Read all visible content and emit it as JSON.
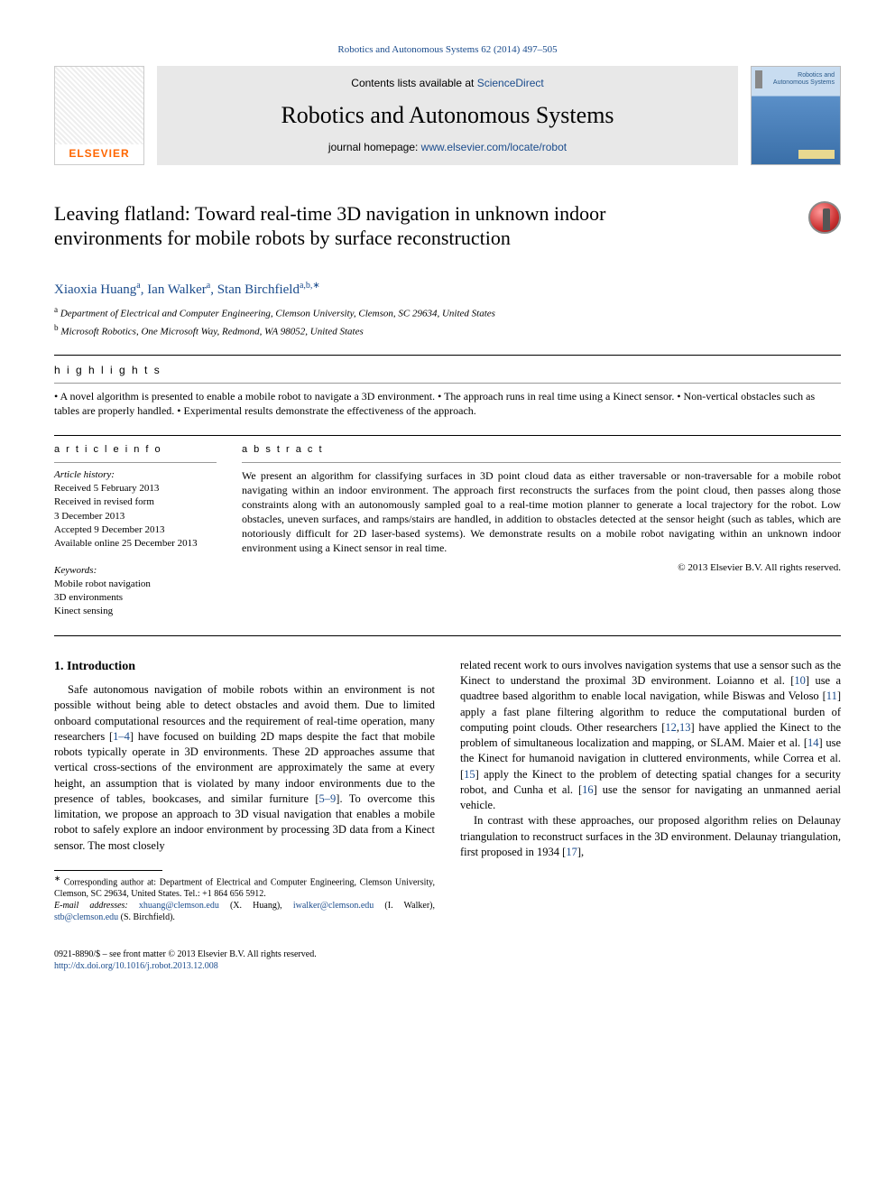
{
  "header": {
    "citation_prefix": "Robotics and Autonomous Systems 62 (2014) 497–505",
    "contents_prefix": "Contents lists available at ",
    "sciencedirect": "ScienceDirect",
    "journal_name": "Robotics and Autonomous Systems",
    "homepage_prefix": "journal homepage: ",
    "homepage_url": "www.elsevier.com/locate/robot",
    "elsevier_label": "ELSEVIER",
    "cover_title_line1": "Robotics and",
    "cover_title_line2": "Autonomous Systems"
  },
  "paper": {
    "title": "Leaving flatland: Toward real-time 3D navigation in unknown indoor environments for mobile robots by surface reconstruction"
  },
  "authors": {
    "a1_name": "Xiaoxia Huang",
    "a1_sup": "a",
    "a2_name": "Ian Walker",
    "a2_sup": "a",
    "a3_name": "Stan Birchfield",
    "a3_sup": "a,b,",
    "corr_mark": "∗"
  },
  "affiliations": {
    "a_sup": "a",
    "a_text": " Department of Electrical and Computer Engineering, Clemson University, Clemson, SC 29634, United States",
    "b_sup": "b",
    "b_text": " Microsoft Robotics, One Microsoft Way, Redmond, WA 98052, United States"
  },
  "highlights": {
    "heading": "h i g h l i g h t s",
    "text": "• A novel algorithm is presented to enable a mobile robot to navigate a 3D environment. • The approach runs in real time using a Kinect sensor. • Non-vertical obstacles such as tables are properly handled. • Experimental results demonstrate the effectiveness of the approach."
  },
  "article_info": {
    "heading": "a r t i c l e   i n f o",
    "hist_label": "Article history:",
    "hist_1": "Received 5 February 2013",
    "hist_2": "Received in revised form",
    "hist_3": "3 December 2013",
    "hist_4": "Accepted 9 December 2013",
    "hist_5": "Available online 25 December 2013",
    "kw_label": "Keywords:",
    "kw_1": "Mobile robot navigation",
    "kw_2": "3D environments",
    "kw_3": "Kinect sensing"
  },
  "abstract": {
    "heading": "a b s t r a c t",
    "text": "We present an algorithm for classifying surfaces in 3D point cloud data as either traversable or non-traversable for a mobile robot navigating within an indoor environment. The approach first reconstructs the surfaces from the point cloud, then passes along those constraints along with an autonomously sampled goal to a real-time motion planner to generate a local trajectory for the robot. Low obstacles, uneven surfaces, and ramps/stairs are handled, in addition to obstacles detected at the sensor height (such as tables, which are notoriously difficult for 2D laser-based systems). We demonstrate results on a mobile robot navigating within an unknown indoor environment using a Kinect sensor in real time.",
    "copyright": "© 2013 Elsevier B.V. All rights reserved."
  },
  "body": {
    "section_num": "1.",
    "section_title": " Introduction",
    "col1_p1": "Safe autonomous navigation of mobile robots within an environment is not possible without being able to detect obstacles and avoid them. Due to limited onboard computational resources and the requirement of real-time operation, many researchers [",
    "ref_1_4": "1–4",
    "col1_p1b": "] have focused on building 2D maps despite the fact that mobile robots typically operate in 3D environments. These 2D approaches assume that vertical cross-sections of the environment are approximately the same at every height, an assumption that is violated by many indoor environments due to the presence of tables, bookcases, and similar furniture [",
    "ref_5_9": "5–9",
    "col1_p1c": "]. To overcome this limitation, we propose an approach to 3D visual navigation that enables a mobile robot to safely explore an indoor environment by processing 3D data from a Kinect sensor. The most closely",
    "col2_p1a": "related recent work to ours involves navigation systems that use a sensor such as the Kinect to understand the proximal 3D environment. Loianno et al. [",
    "ref_10": "10",
    "col2_p1b": "] use a quadtree based algorithm to enable local navigation, while Biswas and Veloso [",
    "ref_11": "11",
    "col2_p1c": "] apply a fast plane filtering algorithm to reduce the computational burden of computing point clouds. Other researchers [",
    "ref_12": "12",
    "ref_13": "13",
    "col2_p1d": "] have applied the Kinect to the problem of simultaneous localization and mapping, or SLAM. Maier et al. [",
    "ref_14": "14",
    "col2_p1e": "] use the Kinect for humanoid navigation in cluttered environments, while Correa et al. [",
    "ref_15": "15",
    "col2_p1f": "] apply the Kinect to the problem of detecting spatial changes for a security robot, and Cunha et al. [",
    "ref_16": "16",
    "col2_p1g": "] use the sensor for navigating an unmanned aerial vehicle.",
    "col2_p2a": "In contrast with these approaches, our proposed algorithm relies on Delaunay triangulation to reconstruct surfaces in the 3D environment. Delaunay triangulation, first proposed in 1934 [",
    "ref_17": "17",
    "col2_p2b": "],"
  },
  "footnote": {
    "corr_mark": "∗",
    "corr_text": " Corresponding author at: Department of Electrical and Computer Engineering, Clemson University, Clemson, SC 29634, United States. Tel.: +1 864 656 5912.",
    "email_label": "E-mail addresses: ",
    "email1": "xhuang@clemson.edu",
    "email1_who": " (X. Huang), ",
    "email2": "iwalker@clemson.edu",
    "email2_who": " (I. Walker), ",
    "email3": "stb@clemson.edu",
    "email3_who": " (S. Birchfield)."
  },
  "doi": {
    "line1": "0921-8890/$ – see front matter © 2013 Elsevier B.V. All rights reserved.",
    "url": "http://dx.doi.org/10.1016/j.robot.2013.12.008"
  }
}
